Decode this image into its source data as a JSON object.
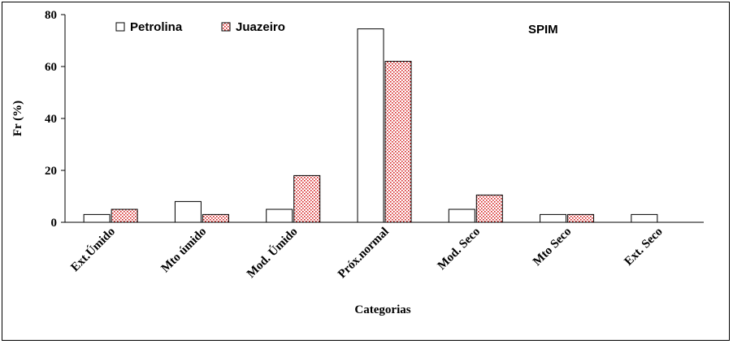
{
  "chart_data": {
    "type": "bar",
    "annotation": "SPIM",
    "xlabel": "Categorias",
    "ylabel": "Fr (%)",
    "ylim": [
      0,
      80
    ],
    "yticks": [
      0,
      20,
      40,
      60,
      80
    ],
    "categories": [
      "Ext.Úmido",
      "Mto úmido",
      "Mod. Úmido",
      "Próx.normal",
      "Mod. Seco",
      "Mto Seco",
      "Ext. Seco"
    ],
    "series": [
      {
        "name": "Petrolina",
        "values": [
          3,
          8,
          5,
          74.5,
          5,
          3,
          3
        ],
        "color": "#ffffff"
      },
      {
        "name": "Juazeiro",
        "values": [
          5,
          3,
          18,
          62,
          10.5,
          3,
          0
        ],
        "color": "#d42020"
      }
    ],
    "legend_position": "top-left",
    "grid": false
  }
}
